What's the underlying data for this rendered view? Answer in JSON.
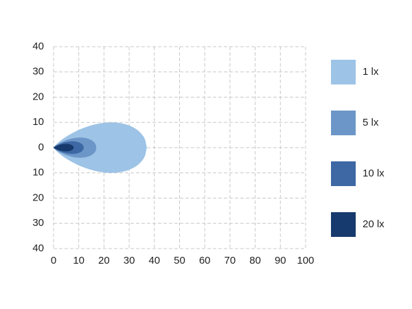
{
  "chart_data": {
    "type": "isolux",
    "xlim": [
      0,
      100
    ],
    "xticks": [
      0,
      10,
      20,
      30,
      40,
      50,
      60,
      70,
      80,
      90,
      100
    ],
    "ylim": [
      -40,
      40
    ],
    "yticks": [
      {
        "value": -40,
        "label": "40"
      },
      {
        "value": -30,
        "label": "30"
      },
      {
        "value": -20,
        "label": "20"
      },
      {
        "value": -10,
        "label": "10"
      },
      0,
      10,
      20,
      30,
      40
    ],
    "grid": true,
    "series": [
      {
        "name": "1 lx",
        "color": "#9dc3e6",
        "length": 37,
        "half_width": 10
      },
      {
        "name": "5 lx",
        "color": "#6d96c8",
        "length": 17,
        "half_width": 4
      },
      {
        "name": "10 lx",
        "color": "#3d68a4",
        "length": 12,
        "half_width": 2.5
      },
      {
        "name": "20 lx",
        "color": "#173a6e",
        "length": 8,
        "half_width": 1.5
      }
    ]
  }
}
